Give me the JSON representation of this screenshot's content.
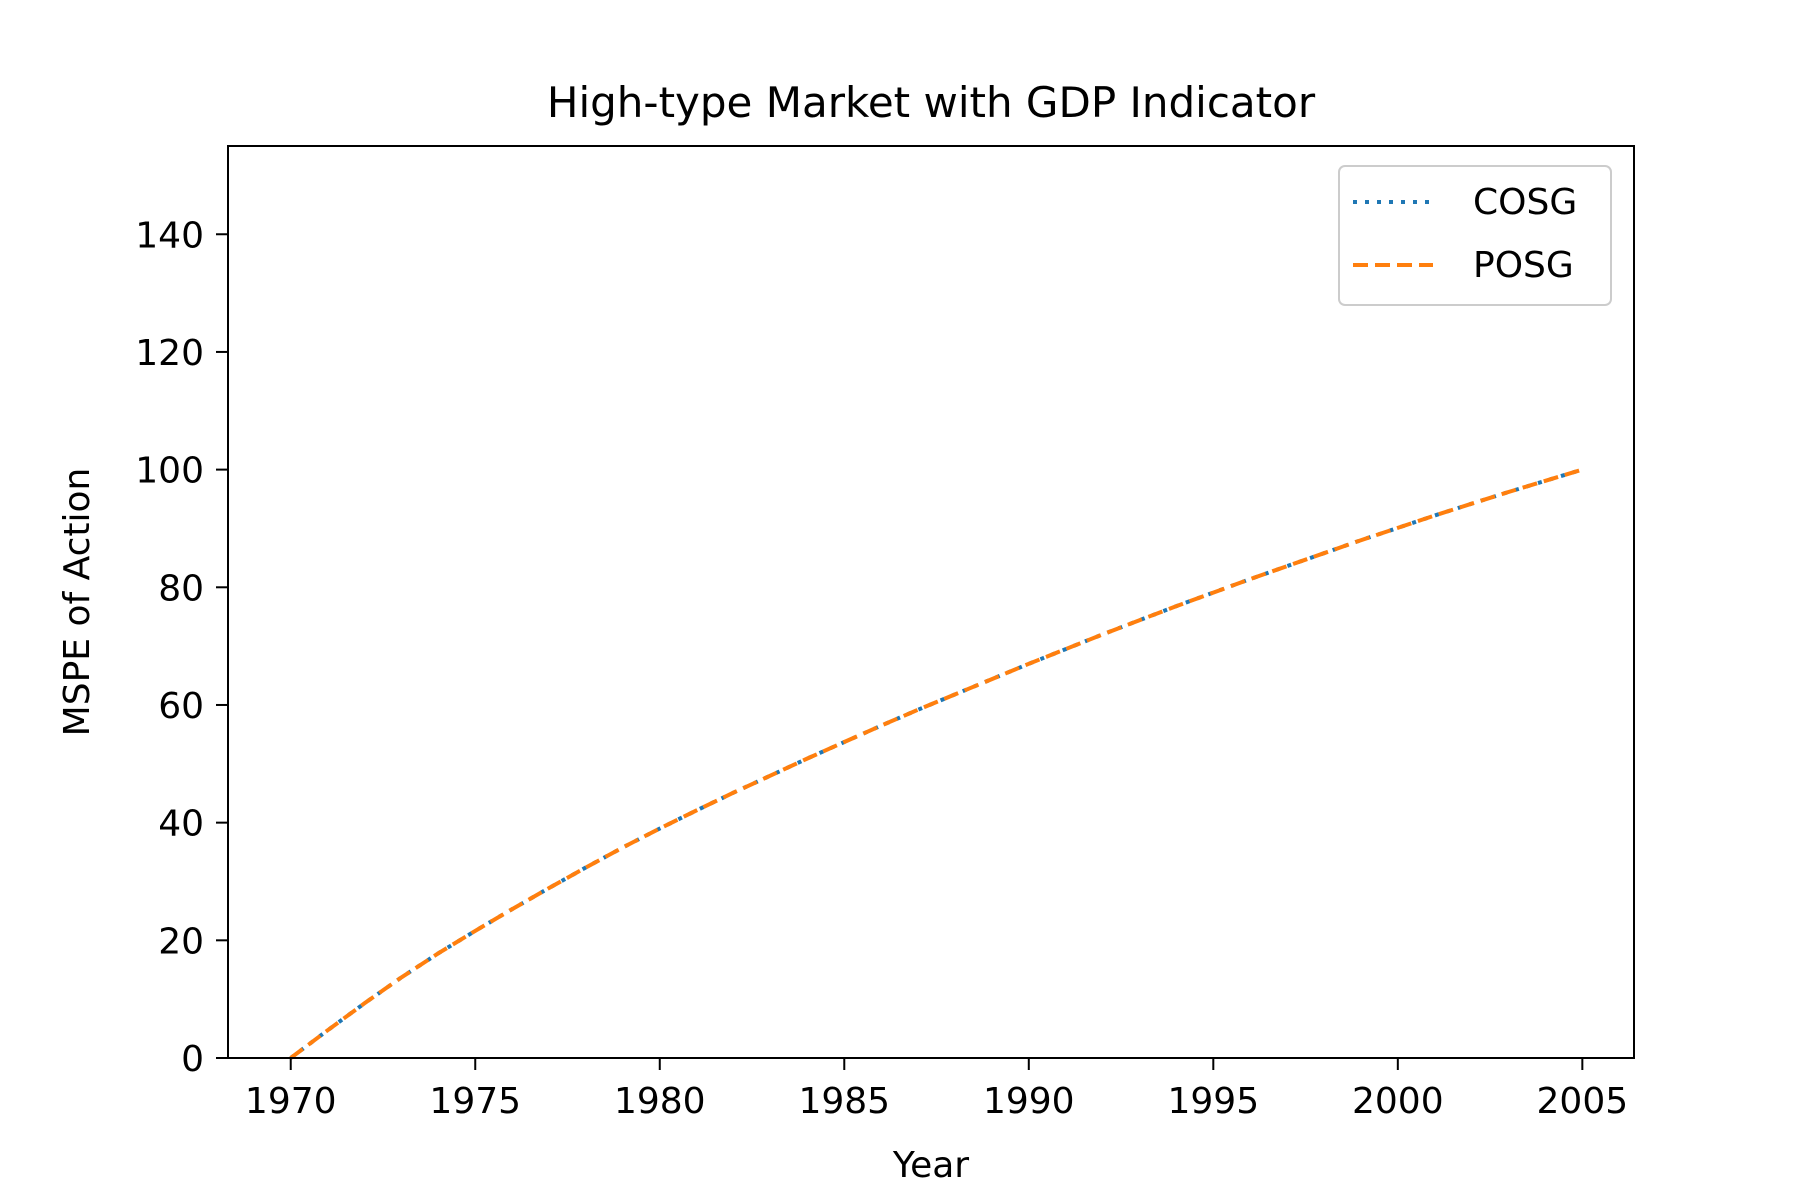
{
  "chart_data": {
    "type": "line",
    "title": "High-type Market with GDP Indicator",
    "xlabel": "Year",
    "ylabel": "MSPE of Action",
    "xlim": [
      1968.3,
      2006.4
    ],
    "ylim": [
      0,
      155
    ],
    "xticks": [
      1970,
      1975,
      1980,
      1985,
      1990,
      1995,
      2000,
      2005
    ],
    "xtick_labels": [
      "1970",
      "1975",
      "1980",
      "1985",
      "1990",
      "1995",
      "2000",
      "2005"
    ],
    "yticks": [
      0,
      20,
      40,
      60,
      80,
      100,
      120,
      140
    ],
    "ytick_labels": [
      "0",
      "20",
      "40",
      "60",
      "80",
      "100",
      "120",
      "140"
    ],
    "grid": false,
    "legend_position": "top-right",
    "x": [
      1970,
      1971,
      1972,
      1973,
      1974,
      1975,
      1976,
      1977,
      1978,
      1979,
      1980,
      1981,
      1982,
      1983,
      1984,
      1985,
      1986,
      1987,
      1988,
      1989,
      1990,
      1991,
      1992,
      1993,
      1994,
      1995,
      1996,
      1997,
      1998,
      1999,
      2000,
      2001,
      2002,
      2003,
      2004,
      2005
    ],
    "series": [
      {
        "name": "COSG",
        "color": "#1f77b4",
        "style": "dotted",
        "values": [
          0,
          4.7,
          9.3,
          13.7,
          17.8,
          21.6,
          25.3,
          28.9,
          32.4,
          35.8,
          39.0,
          42.1,
          45.1,
          48.0,
          50.9,
          53.7,
          56.5,
          59.2,
          61.8,
          64.4,
          67.0,
          69.5,
          72.0,
          74.4,
          76.8,
          79.1,
          81.4,
          83.6,
          85.8,
          88.0,
          90.1,
          92.2,
          94.2,
          96.2,
          98.1,
          100.0
        ]
      },
      {
        "name": "POSG",
        "color": "#ff7f0e",
        "style": "dashed",
        "values": [
          0,
          4.7,
          9.3,
          13.7,
          17.8,
          21.6,
          25.3,
          28.9,
          32.4,
          35.8,
          39.0,
          42.1,
          45.1,
          48.0,
          50.9,
          53.7,
          56.5,
          59.2,
          61.8,
          64.4,
          67.0,
          69.5,
          72.0,
          74.4,
          76.8,
          79.1,
          81.4,
          83.6,
          85.8,
          88.0,
          90.1,
          92.2,
          94.2,
          96.2,
          98.1,
          100.0
        ]
      }
    ]
  }
}
